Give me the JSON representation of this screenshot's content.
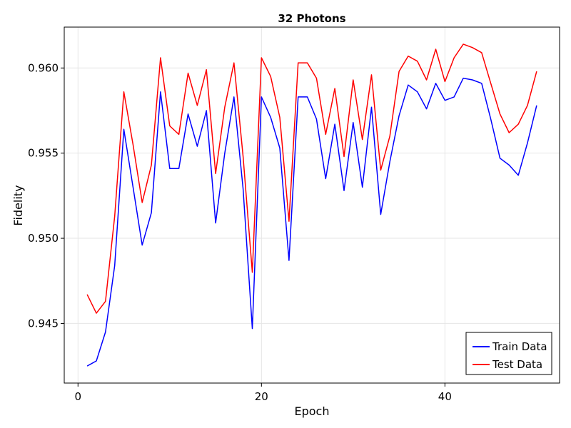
{
  "chart_data": {
    "type": "line",
    "title": "32 Photons",
    "xlabel": "Epoch",
    "ylabel": "Fidelity",
    "xlim": [
      -1.5,
      52.5
    ],
    "ylim": [
      0.9415,
      0.9624
    ],
    "xticks": [
      0,
      20,
      40
    ],
    "xtick_labels": [
      "0",
      "20",
      "40"
    ],
    "yticks": [
      0.945,
      0.95,
      0.955,
      0.96
    ],
    "ytick_labels": [
      "0.945",
      "0.950",
      "0.955",
      "0.960"
    ],
    "grid": true,
    "legend_position": "bottom-right",
    "x": [
      1,
      2,
      3,
      4,
      5,
      6,
      7,
      8,
      9,
      10,
      11,
      12,
      13,
      14,
      15,
      16,
      17,
      18,
      19,
      20,
      21,
      22,
      23,
      24,
      25,
      26,
      27,
      28,
      29,
      30,
      31,
      32,
      33,
      34,
      35,
      36,
      37,
      38,
      39,
      40,
      41,
      42,
      43,
      44,
      45,
      46,
      47,
      48,
      49,
      50
    ],
    "series": [
      {
        "name": "Train Data",
        "color": "#0000ff",
        "values": [
          0.9425,
          0.9428,
          0.9445,
          0.9484,
          0.9564,
          0.953,
          0.9496,
          0.9515,
          0.9586,
          0.9541,
          0.9541,
          0.9573,
          0.9554,
          0.9575,
          0.9509,
          0.955,
          0.9583,
          0.9529,
          0.9447,
          0.9583,
          0.9571,
          0.9553,
          0.9487,
          0.9583,
          0.9583,
          0.957,
          0.9535,
          0.9567,
          0.9528,
          0.9568,
          0.953,
          0.9577,
          0.9514,
          0.9545,
          0.9572,
          0.959,
          0.9586,
          0.9576,
          0.9591,
          0.9581,
          0.9583,
          0.9594,
          0.9593,
          0.9591,
          0.957,
          0.9547,
          0.9543,
          0.9537,
          0.9556,
          0.9578
        ]
      },
      {
        "name": "Test Data",
        "color": "#ff0000",
        "values": [
          0.9467,
          0.9456,
          0.9463,
          0.9513,
          0.9586,
          0.9555,
          0.9521,
          0.9543,
          0.9606,
          0.9566,
          0.9561,
          0.9597,
          0.9578,
          0.9599,
          0.9538,
          0.9577,
          0.9603,
          0.9548,
          0.948,
          0.9606,
          0.9595,
          0.9571,
          0.951,
          0.9603,
          0.9603,
          0.9594,
          0.9561,
          0.9588,
          0.9548,
          0.9593,
          0.9558,
          0.9596,
          0.954,
          0.956,
          0.9598,
          0.9607,
          0.9604,
          0.9593,
          0.9611,
          0.9592,
          0.9606,
          0.9614,
          0.9612,
          0.9609,
          0.9591,
          0.9573,
          0.9562,
          0.9567,
          0.9578,
          0.9598
        ]
      }
    ]
  }
}
